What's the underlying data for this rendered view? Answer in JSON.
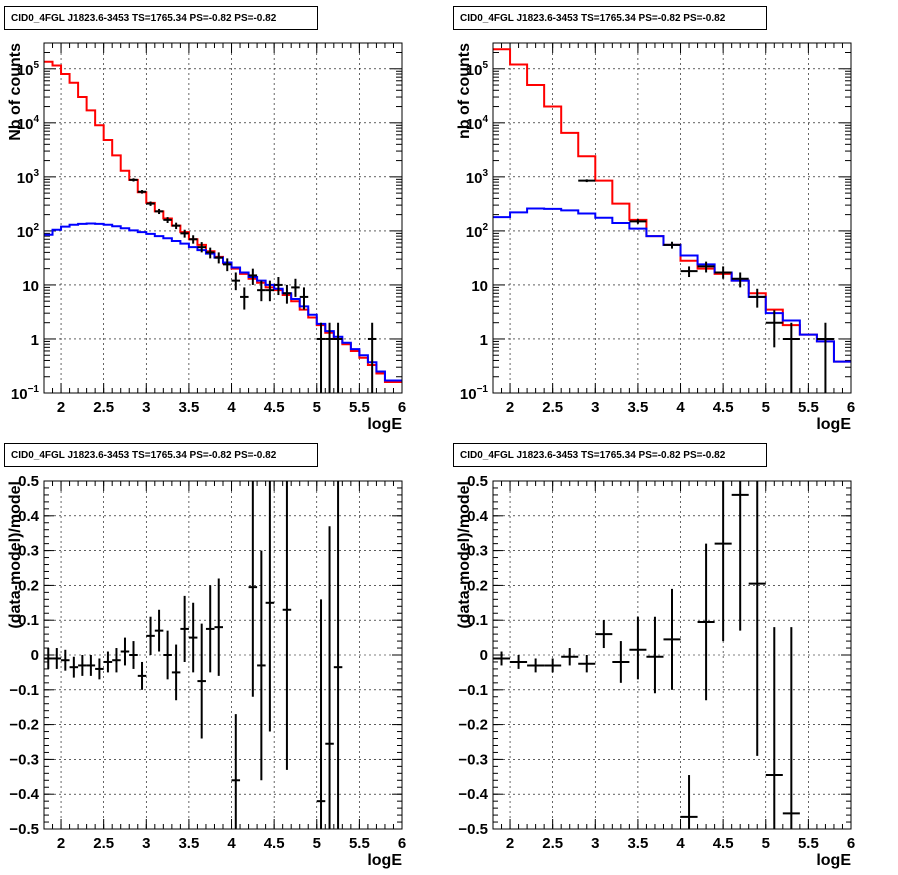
{
  "chart_data": [
    {
      "type": "line",
      "title": "CID0_4FGL J1823.6-3453 TS=1765.34 PS=-0.82 PS=-0.82",
      "xlabel": "logE",
      "ylabel": "Nb of counts",
      "xlim": [
        1.8,
        6
      ],
      "ylim": [
        0.1,
        300000
      ],
      "yscale": "log",
      "grid": true,
      "xticks": [
        "2",
        "2.5",
        "3",
        "3.5",
        "4",
        "4.5",
        "5",
        "5.5",
        "6"
      ],
      "yticks": [
        {
          "v": 0.1,
          "base": "10",
          "exp": "−1"
        },
        {
          "v": 1,
          "base": "1",
          "exp": ""
        },
        {
          "v": 10,
          "base": "10",
          "exp": ""
        },
        {
          "v": 100,
          "base": "10",
          "exp": "2"
        },
        {
          "v": 1000,
          "base": "10",
          "exp": "3"
        },
        {
          "v": 10000,
          "base": "10",
          "exp": "4"
        },
        {
          "v": 100000,
          "base": "10",
          "exp": "5"
        }
      ],
      "series": [
        {
          "color": "#ff0000",
          "style": "step",
          "bin_width": 0.1,
          "x": [
            1.8,
            1.9,
            2.0,
            2.1,
            2.2,
            2.3,
            2.4,
            2.5,
            2.6,
            2.7,
            2.8,
            2.9,
            3.0,
            3.1,
            3.2,
            3.3,
            3.4,
            3.5,
            3.6,
            3.7,
            3.8,
            3.9,
            4.0,
            4.1,
            4.2,
            4.3,
            4.4,
            4.5,
            4.6,
            4.7,
            4.8,
            4.9,
            5.0,
            5.1,
            5.2,
            5.3,
            5.4,
            5.5,
            5.6,
            5.7,
            5.8,
            5.9,
            6.0
          ],
          "y": [
            135000,
            115000,
            80000,
            55000,
            30000,
            17000,
            9000,
            4800,
            2500,
            1300,
            880,
            520,
            330,
            230,
            170,
            125,
            95,
            70,
            55,
            42,
            33,
            25,
            20,
            16,
            13,
            11,
            9,
            8,
            6.5,
            5,
            3.5,
            2.5,
            1.8,
            1.3,
            1.0,
            0.8,
            0.6,
            0.45,
            0.33,
            0.23,
            0.16,
            0.16,
            0.16
          ]
        },
        {
          "color": "#0000ff",
          "style": "step",
          "bin_width": 0.1,
          "x": [
            1.8,
            1.9,
            2.0,
            2.1,
            2.2,
            2.3,
            2.4,
            2.5,
            2.6,
            2.7,
            2.8,
            2.9,
            3.0,
            3.1,
            3.2,
            3.3,
            3.4,
            3.5,
            3.6,
            3.7,
            3.8,
            3.9,
            4.0,
            4.1,
            4.2,
            4.3,
            4.4,
            4.5,
            4.6,
            4.7,
            4.8,
            4.9,
            5.0,
            5.1,
            5.2,
            5.3,
            5.4,
            5.5,
            5.6,
            5.7,
            5.8,
            5.9,
            6.0
          ],
          "y": [
            85,
            105,
            120,
            130,
            135,
            137,
            135,
            130,
            122,
            112,
            102,
            95,
            88,
            80,
            73,
            65,
            58,
            50,
            44,
            38,
            32,
            26,
            21,
            17,
            14,
            12,
            10,
            8.5,
            7,
            5.5,
            4,
            2.8,
            1.9,
            1.4,
            1.1,
            0.85,
            0.65,
            0.5,
            0.37,
            0.25,
            0.17,
            0.17,
            0.17
          ]
        }
      ],
      "points": [
        {
          "x": 2.85,
          "y": 880,
          "lo": 820,
          "hi": 940
        },
        {
          "x": 2.95,
          "y": 530,
          "lo": 490,
          "hi": 570
        },
        {
          "x": 3.05,
          "y": 320,
          "lo": 290,
          "hi": 350
        },
        {
          "x": 3.15,
          "y": 230,
          "lo": 205,
          "hi": 255
        },
        {
          "x": 3.25,
          "y": 160,
          "lo": 140,
          "hi": 180
        },
        {
          "x": 3.35,
          "y": 125,
          "lo": 108,
          "hi": 142
        },
        {
          "x": 3.45,
          "y": 90,
          "lo": 75,
          "hi": 105
        },
        {
          "x": 3.55,
          "y": 70,
          "lo": 58,
          "hi": 83
        },
        {
          "x": 3.65,
          "y": 50,
          "lo": 40,
          "hi": 62
        },
        {
          "x": 3.75,
          "y": 40,
          "lo": 31,
          "hi": 49
        },
        {
          "x": 3.85,
          "y": 32,
          "lo": 25,
          "hi": 40
        },
        {
          "x": 3.95,
          "y": 24,
          "lo": 18,
          "hi": 31
        },
        {
          "x": 4.05,
          "y": 12,
          "lo": 8,
          "hi": 17
        },
        {
          "x": 4.15,
          "y": 6,
          "lo": 3.5,
          "hi": 9
        },
        {
          "x": 4.25,
          "y": 15,
          "lo": 10,
          "hi": 20
        },
        {
          "x": 4.35,
          "y": 8,
          "lo": 5,
          "hi": 12
        },
        {
          "x": 4.45,
          "y": 8,
          "lo": 5,
          "hi": 12
        },
        {
          "x": 4.55,
          "y": 10,
          "lo": 6.5,
          "hi": 14
        },
        {
          "x": 4.65,
          "y": 7,
          "lo": 4.5,
          "hi": 10
        },
        {
          "x": 4.75,
          "y": 9,
          "lo": 6,
          "hi": 13
        },
        {
          "x": 4.85,
          "y": 6,
          "lo": 3.5,
          "hi": 9
        },
        {
          "x": 5.05,
          "y": 1,
          "lo": 0.1,
          "hi": 2
        },
        {
          "x": 5.15,
          "y": 1,
          "lo": 0.1,
          "hi": 2
        },
        {
          "x": 5.25,
          "y": 1,
          "lo": 0.1,
          "hi": 2
        },
        {
          "x": 5.65,
          "y": 1,
          "lo": 0.1,
          "hi": 2
        }
      ]
    },
    {
      "type": "line",
      "title": "CID0_4FGL J1823.6-3453 TS=1765.34 PS=-0.82 PS=-0.82",
      "xlabel": "logE",
      "ylabel": "nb of counts",
      "xlim": [
        1.8,
        6
      ],
      "ylim": [
        0.1,
        300000
      ],
      "yscale": "log",
      "grid": true,
      "xticks": [
        "2",
        "2.5",
        "3",
        "3.5",
        "4",
        "4.5",
        "5",
        "5.5",
        "6"
      ],
      "yticks": [
        {
          "v": 0.1,
          "base": "10",
          "exp": "−1"
        },
        {
          "v": 1,
          "base": "1",
          "exp": ""
        },
        {
          "v": 10,
          "base": "10",
          "exp": ""
        },
        {
          "v": 100,
          "base": "10",
          "exp": "2"
        },
        {
          "v": 1000,
          "base": "10",
          "exp": "3"
        },
        {
          "v": 10000,
          "base": "10",
          "exp": "4"
        },
        {
          "v": 100000,
          "base": "10",
          "exp": "5"
        }
      ],
      "series": [
        {
          "color": "#ff0000",
          "style": "step",
          "bin_width": 0.2,
          "x": [
            1.8,
            2.0,
            2.2,
            2.4,
            2.6,
            2.8,
            3.0,
            3.2,
            3.4,
            3.6,
            3.8,
            4.0,
            4.2,
            4.4,
            4.6,
            4.8,
            5.0,
            5.2,
            5.4,
            5.6,
            5.8,
            6.0
          ],
          "y": [
            230000,
            120000,
            50000,
            20000,
            6500,
            2400,
            850,
            320,
            160,
            80,
            55,
            28,
            20,
            16,
            12,
            7,
            3.5,
            1.8,
            1.2,
            0.9,
            0.38,
            0.38
          ]
        },
        {
          "color": "#0000ff",
          "style": "step",
          "bin_width": 0.2,
          "x": [
            1.8,
            2.0,
            2.2,
            2.4,
            2.6,
            2.8,
            3.0,
            3.2,
            3.4,
            3.6,
            3.8,
            4.0,
            4.2,
            4.4,
            4.6,
            4.8,
            5.0,
            5.2,
            5.4,
            5.6,
            5.8,
            6.0
          ],
          "y": [
            180,
            220,
            260,
            255,
            240,
            210,
            175,
            140,
            110,
            80,
            55,
            35,
            24,
            17,
            12,
            6,
            3.0,
            2.2,
            1.2,
            0.9,
            0.38,
            0.38
          ]
        }
      ],
      "points": [
        {
          "x": 2.9,
          "y": 850,
          "lo": 800,
          "hi": 900
        },
        {
          "x": 3.5,
          "y": 150,
          "lo": 135,
          "hi": 165
        },
        {
          "x": 3.9,
          "y": 55,
          "lo": 47,
          "hi": 63
        },
        {
          "x": 4.1,
          "y": 18,
          "lo": 14,
          "hi": 22
        },
        {
          "x": 4.3,
          "y": 22,
          "lo": 17,
          "hi": 27
        },
        {
          "x": 4.5,
          "y": 17,
          "lo": 13,
          "hi": 22
        },
        {
          "x": 4.7,
          "y": 13,
          "lo": 9,
          "hi": 17
        },
        {
          "x": 4.9,
          "y": 6,
          "lo": 3.8,
          "hi": 8.5
        },
        {
          "x": 5.1,
          "y": 2,
          "lo": 0.7,
          "hi": 3.4
        },
        {
          "x": 5.3,
          "y": 1,
          "lo": 0.1,
          "hi": 2
        },
        {
          "x": 5.7,
          "y": 1,
          "lo": 0.1,
          "hi": 2
        }
      ]
    },
    {
      "type": "scatter",
      "title": "CID0_4FGL J1823.6-3453 TS=1765.34 PS=-0.82 PS=-0.82",
      "xlabel": "logE",
      "ylabel": "(data-model)/model",
      "xlim": [
        1.8,
        6
      ],
      "ylim": [
        -0.5,
        0.5
      ],
      "grid": true,
      "xticks": [
        "2",
        "2.5",
        "3",
        "3.5",
        "4",
        "4.5",
        "5",
        "5.5",
        "6"
      ],
      "yticks": [
        "−0.5",
        "−0.4",
        "−0.3",
        "−0.2",
        "−0.1",
        "0",
        "0.1",
        "0.2",
        "0.3",
        "0.4",
        "0.5"
      ],
      "bin_width": 0.1,
      "points": [
        {
          "x": 1.85,
          "y": -0.01,
          "lo": -0.04,
          "hi": 0.02
        },
        {
          "x": 1.95,
          "y": -0.01,
          "lo": -0.04,
          "hi": 0.02
        },
        {
          "x": 2.05,
          "y": -0.015,
          "lo": -0.045,
          "hi": 0.015
        },
        {
          "x": 2.15,
          "y": -0.035,
          "lo": -0.065,
          "hi": -0.005
        },
        {
          "x": 2.25,
          "y": -0.03,
          "lo": -0.06,
          "hi": 0.0
        },
        {
          "x": 2.35,
          "y": -0.03,
          "lo": -0.06,
          "hi": 0.0
        },
        {
          "x": 2.45,
          "y": -0.04,
          "lo": -0.07,
          "hi": -0.01
        },
        {
          "x": 2.55,
          "y": -0.02,
          "lo": -0.05,
          "hi": 0.01
        },
        {
          "x": 2.65,
          "y": -0.015,
          "lo": -0.05,
          "hi": 0.02
        },
        {
          "x": 2.75,
          "y": 0.01,
          "lo": -0.03,
          "hi": 0.05
        },
        {
          "x": 2.85,
          "y": 0.0,
          "lo": -0.04,
          "hi": 0.04
        },
        {
          "x": 2.95,
          "y": -0.06,
          "lo": -0.1,
          "hi": -0.02
        },
        {
          "x": 3.05,
          "y": 0.055,
          "lo": 0.0,
          "hi": 0.11
        },
        {
          "x": 3.15,
          "y": 0.07,
          "lo": 0.01,
          "hi": 0.13
        },
        {
          "x": 3.25,
          "y": 0.0,
          "lo": -0.07,
          "hi": 0.07
        },
        {
          "x": 3.35,
          "y": -0.05,
          "lo": -0.13,
          "hi": 0.03
        },
        {
          "x": 3.45,
          "y": 0.075,
          "lo": -0.02,
          "hi": 0.17
        },
        {
          "x": 3.55,
          "y": 0.05,
          "lo": -0.05,
          "hi": 0.15
        },
        {
          "x": 3.65,
          "y": -0.075,
          "lo": -0.24,
          "hi": 0.09
        },
        {
          "x": 3.75,
          "y": 0.075,
          "lo": -0.05,
          "hi": 0.2
        },
        {
          "x": 3.85,
          "y": 0.08,
          "lo": -0.06,
          "hi": 0.22
        },
        {
          "x": 4.05,
          "y": -0.36,
          "lo": -0.5,
          "hi": -0.17
        },
        {
          "x": 4.25,
          "y": 0.195,
          "lo": -0.12,
          "hi": 0.5
        },
        {
          "x": 4.35,
          "y": -0.03,
          "lo": -0.36,
          "hi": 0.3
        },
        {
          "x": 4.45,
          "y": 0.15,
          "lo": -0.22,
          "hi": 0.5
        },
        {
          "x": 4.65,
          "y": 0.13,
          "lo": -0.33,
          "hi": 0.5
        },
        {
          "x": 5.05,
          "y": -0.42,
          "lo": -0.5,
          "hi": 0.16
        },
        {
          "x": 5.15,
          "y": -0.255,
          "lo": -0.5,
          "hi": 0.37
        },
        {
          "x": 5.25,
          "y": -0.035,
          "lo": -0.5,
          "hi": 0.5
        }
      ]
    },
    {
      "type": "scatter",
      "title": "CID0_4FGL J1823.6-3453 TS=1765.34 PS=-0.82 PS=-0.82",
      "xlabel": "logE",
      "ylabel": "(data-model)/model",
      "xlim": [
        1.8,
        6
      ],
      "ylim": [
        -0.5,
        0.5
      ],
      "grid": true,
      "xticks": [
        "2",
        "2.5",
        "3",
        "3.5",
        "4",
        "4.5",
        "5",
        "5.5",
        "6"
      ],
      "yticks": [
        "−0.5",
        "−0.4",
        "−0.3",
        "−0.2",
        "−0.1",
        "0",
        "0.1",
        "0.2",
        "0.3",
        "0.4",
        "0.5"
      ],
      "bin_width": 0.2,
      "points": [
        {
          "x": 1.9,
          "y": -0.01,
          "lo": -0.03,
          "hi": 0.01
        },
        {
          "x": 2.1,
          "y": -0.02,
          "lo": -0.04,
          "hi": 0.0
        },
        {
          "x": 2.3,
          "y": -0.03,
          "lo": -0.05,
          "hi": -0.01
        },
        {
          "x": 2.5,
          "y": -0.03,
          "lo": -0.05,
          "hi": -0.01
        },
        {
          "x": 2.7,
          "y": -0.005,
          "lo": -0.03,
          "hi": 0.02
        },
        {
          "x": 2.9,
          "y": -0.025,
          "lo": -0.05,
          "hi": 0.0
        },
        {
          "x": 3.1,
          "y": 0.06,
          "lo": 0.02,
          "hi": 0.1
        },
        {
          "x": 3.3,
          "y": -0.02,
          "lo": -0.08,
          "hi": 0.04
        },
        {
          "x": 3.5,
          "y": 0.015,
          "lo": -0.07,
          "hi": 0.11
        },
        {
          "x": 3.7,
          "y": -0.005,
          "lo": -0.11,
          "hi": 0.11
        },
        {
          "x": 3.9,
          "y": 0.045,
          "lo": -0.1,
          "hi": 0.19
        },
        {
          "x": 4.1,
          "y": -0.465,
          "lo": -0.5,
          "hi": -0.345
        },
        {
          "x": 4.3,
          "y": 0.095,
          "lo": -0.13,
          "hi": 0.32
        },
        {
          "x": 4.5,
          "y": 0.32,
          "lo": 0.04,
          "hi": 0.5
        },
        {
          "x": 4.7,
          "y": 0.46,
          "lo": 0.07,
          "hi": 0.5
        },
        {
          "x": 4.9,
          "y": 0.205,
          "lo": -0.29,
          "hi": 0.5
        },
        {
          "x": 5.1,
          "y": -0.345,
          "lo": -0.5,
          "hi": 0.08
        },
        {
          "x": 5.3,
          "y": -0.455,
          "lo": -0.5,
          "hi": 0.08
        }
      ]
    }
  ]
}
